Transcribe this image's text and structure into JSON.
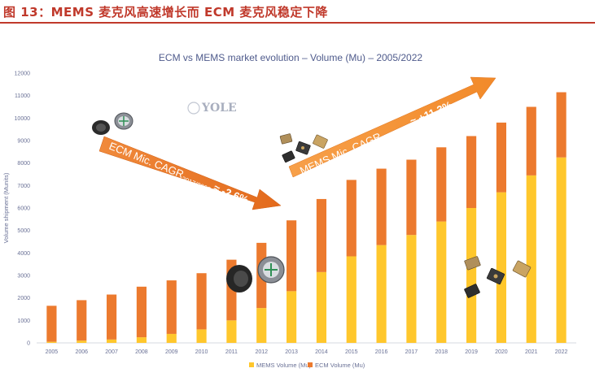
{
  "figure_label": "图 13：MEMS 麦克风高速增长而 ECM 麦克风稳定下降",
  "watermark": "YOLE",
  "colors": {
    "mems": "#ffc72c",
    "ecm": "#ec7a2e",
    "label_red": "#c0392b",
    "axis_text": "#6a7196"
  },
  "annotations": {
    "ecm_cagr": {
      "main": "ECM Mic. CAGR",
      "sub": "2017/2022",
      "value": "≈ -2.6%"
    },
    "mems_cagr": {
      "main": "MEMS Mic. CAGR",
      "sub": "2017/2022",
      "value": "≈ +11.3%"
    }
  },
  "chart_data": {
    "type": "bar",
    "stacked": true,
    "title": "ECM vs MEMS market evolution – Volume (Mu) – 2005/2022",
    "xlabel": "",
    "ylabel": "Volume shipment (Munits)",
    "ylim": [
      0,
      12000
    ],
    "yticks": [
      0,
      1000,
      2000,
      3000,
      4000,
      5000,
      6000,
      7000,
      8000,
      9000,
      10000,
      11000,
      12000
    ],
    "grid": false,
    "legend_position": "bottom",
    "categories": [
      "2005",
      "2006",
      "2007",
      "2008",
      "2009",
      "2010",
      "2011",
      "2012",
      "2013",
      "2014",
      "2015",
      "2016",
      "2017",
      "2018",
      "2019",
      "2020",
      "2021",
      "2022"
    ],
    "series": [
      {
        "name": "MEMS Volume (Mu)",
        "values": [
          50,
          100,
          150,
          250,
          400,
          600,
          1000,
          1550,
          2300,
          3150,
          3850,
          4350,
          4800,
          5400,
          6000,
          6700,
          7450,
          8250
        ]
      },
      {
        "name": "ECM Volume (Mu)",
        "values": [
          1600,
          1800,
          2000,
          2250,
          2380,
          2500,
          2700,
          2900,
          3150,
          3250,
          3400,
          3400,
          3350,
          3300,
          3200,
          3100,
          3050,
          2900
        ]
      }
    ]
  }
}
